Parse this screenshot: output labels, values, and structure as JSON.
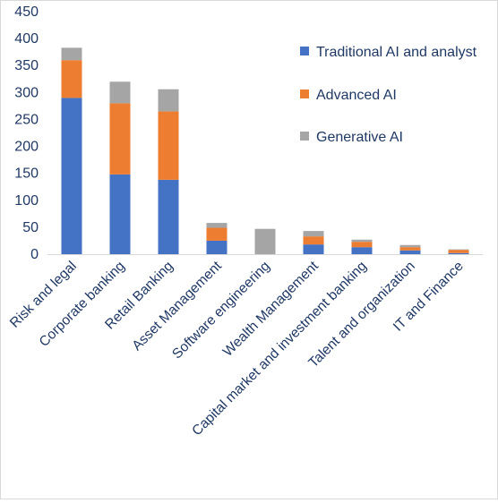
{
  "chart_data": {
    "type": "bar",
    "stacked": true,
    "title": "",
    "xlabel": "",
    "ylabel": "",
    "ylim": [
      0,
      450
    ],
    "yticks": [
      "0",
      "50",
      "100",
      "150",
      "200",
      "250",
      "300",
      "350",
      "400",
      "450"
    ],
    "grid": false,
    "legend_position": "right",
    "categories": [
      "Risk and legal",
      "Corporate banking",
      "Retail Banking",
      "Asset Management",
      "Software engineering",
      "Wealth Management",
      "Capital market and investment banking",
      "Talent and organization",
      "IT and Finance"
    ],
    "series": [
      {
        "name": "Traditional AI and analyst",
        "color": "#4472c4",
        "values": [
          290,
          148,
          138,
          25,
          0,
          18,
          13,
          7,
          2
        ]
      },
      {
        "name": "Advanced AI",
        "color": "#ed7d31",
        "values": [
          70,
          132,
          127,
          24,
          0,
          15,
          10,
          6,
          6
        ]
      },
      {
        "name": "Generative AI",
        "color": "#a5a5a5",
        "values": [
          23,
          40,
          41,
          9,
          47,
          10,
          4,
          4,
          1
        ]
      }
    ]
  }
}
